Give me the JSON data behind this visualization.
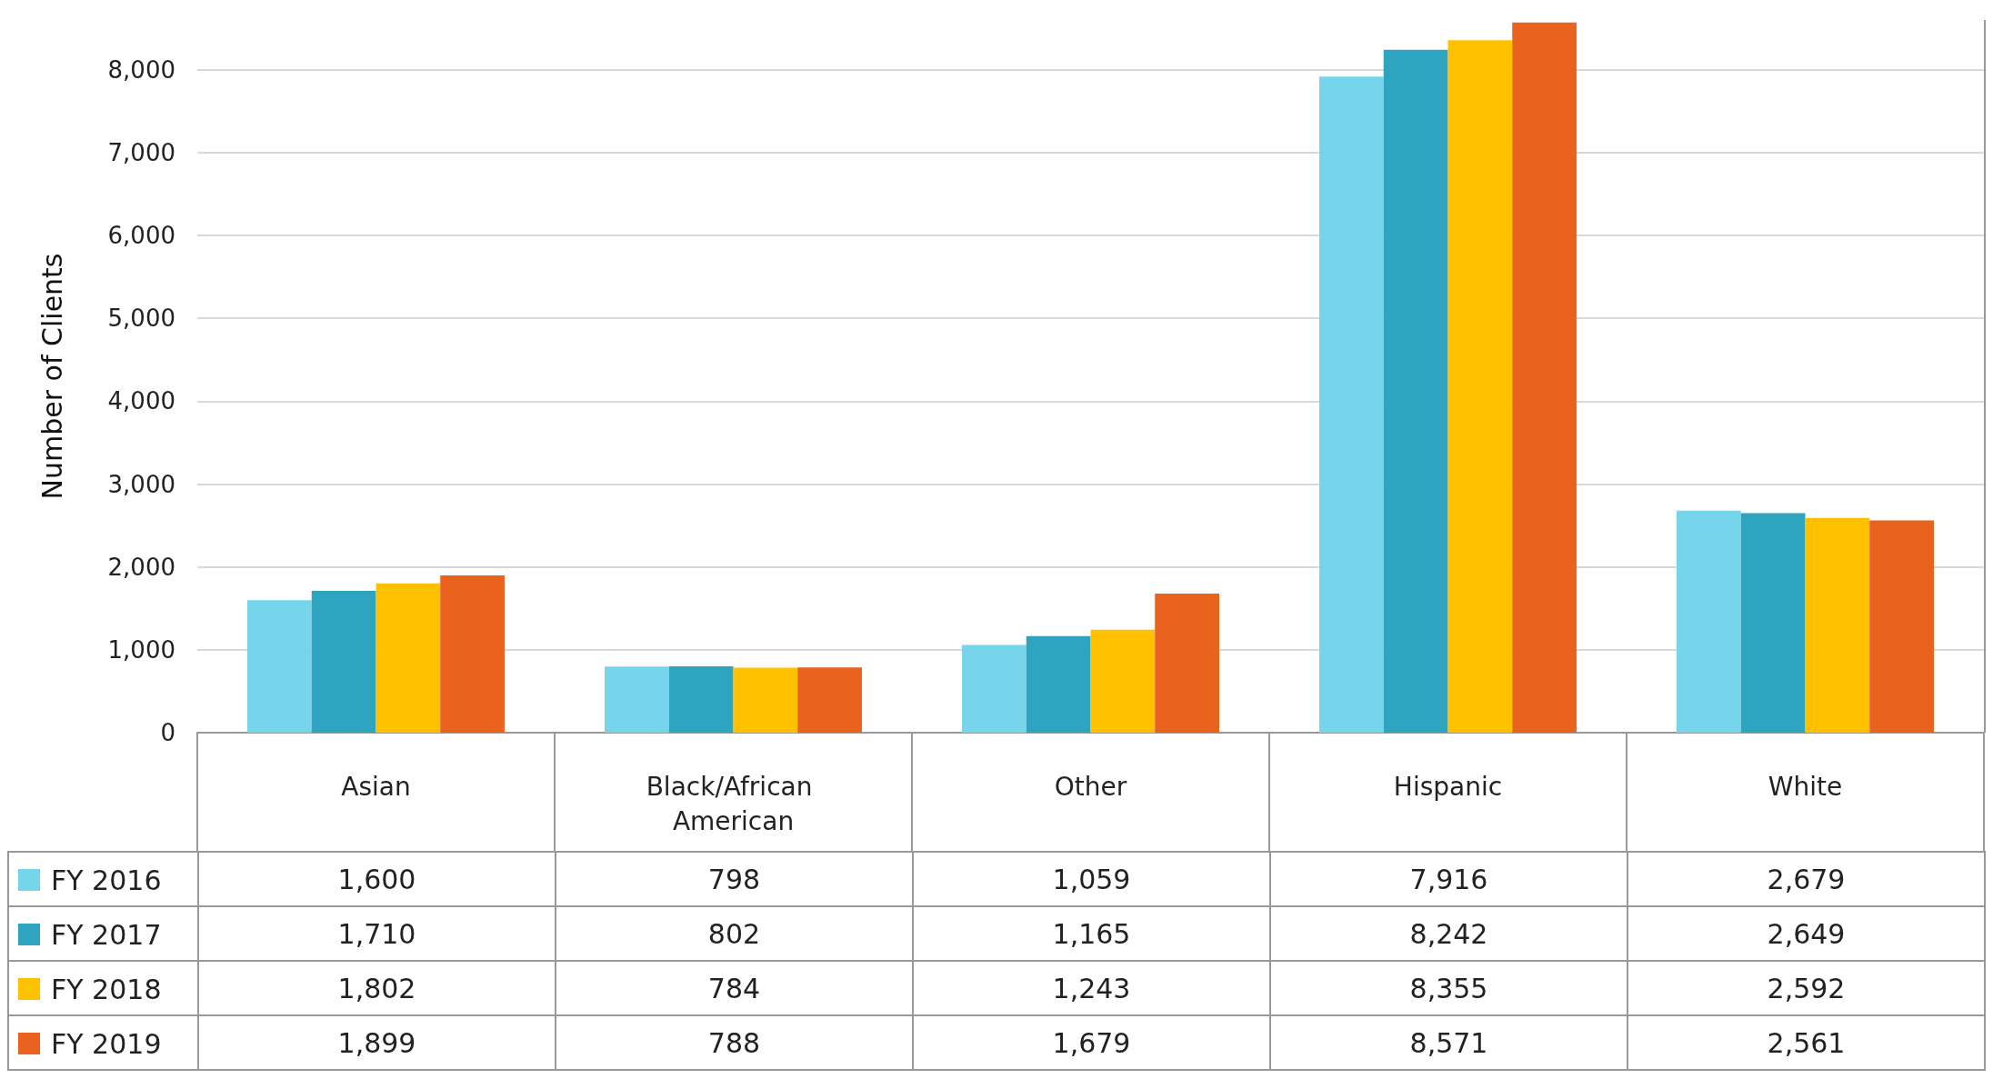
{
  "chart_data": {
    "type": "bar",
    "ylabel": "Number of Clients",
    "categories": [
      "Asian",
      "Black/African American",
      "Other",
      "Hispanic",
      "White"
    ],
    "series": [
      {
        "name": "FY 2016",
        "color": "#76d5ea",
        "values": [
          1600,
          798,
          1059,
          7916,
          2679
        ],
        "value_labels": [
          "1,600",
          "798",
          "1,059",
          "7,916",
          "2,679"
        ]
      },
      {
        "name": "FY 2017",
        "color": "#2ea4c0",
        "values": [
          1710,
          802,
          1165,
          8242,
          2649
        ],
        "value_labels": [
          "1,710",
          "802",
          "1,165",
          "8,242",
          "2,649"
        ]
      },
      {
        "name": "FY 2018",
        "color": "#ffc000",
        "values": [
          1802,
          784,
          1243,
          8355,
          2592
        ],
        "value_labels": [
          "1,802",
          "784",
          "1,243",
          "8,355",
          "2,592"
        ]
      },
      {
        "name": "FY 2019",
        "color": "#e9621e",
        "values": [
          1899,
          788,
          1679,
          8571,
          2561
        ],
        "value_labels": [
          "1,899",
          "788",
          "1,679",
          "8,571",
          "2,561"
        ]
      }
    ],
    "ylim": [
      0,
      8600
    ],
    "yticks": [
      0,
      {
        "value": 1000,
        "label": "1,000"
      },
      {
        "value": 2000,
        "label": "2,000"
      },
      {
        "value": 3000,
        "label": "3,000"
      },
      {
        "value": 4000,
        "label": "4,000"
      },
      {
        "value": 5000,
        "label": "5,000"
      },
      {
        "value": 6000,
        "label": "6,000"
      },
      {
        "value": 7000,
        "label": "7,000"
      },
      {
        "value": 8000,
        "label": "8,000"
      }
    ],
    "grid": "y",
    "legend": "bottom"
  }
}
